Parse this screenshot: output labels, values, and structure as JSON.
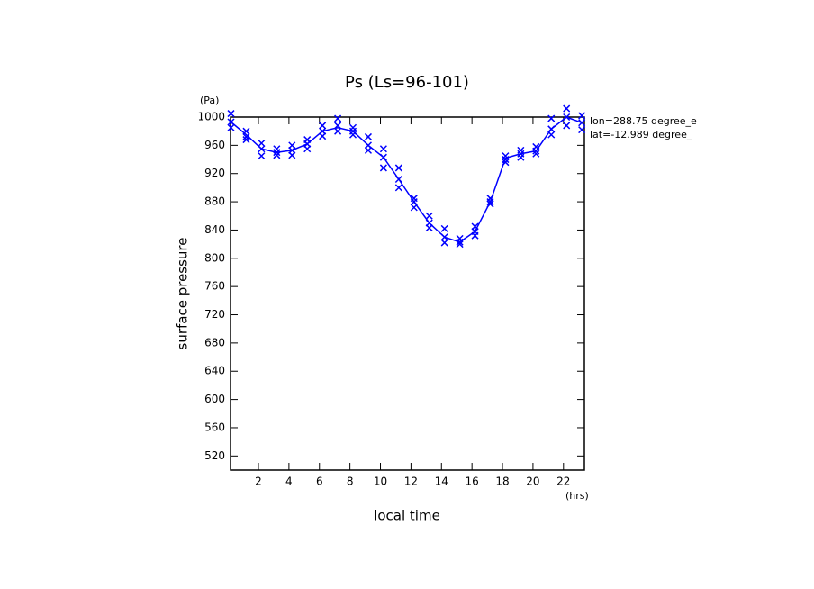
{
  "chart_data": {
    "type": "line",
    "title": "Ps (Ls=96-101)",
    "x_label": "local time",
    "y_label": "surface pressure",
    "y_unit": "(Pa)",
    "x_unit": "(hrs)",
    "annotations": [
      "lon=288.75 degree_e",
      "lat=-12.989 degree_"
    ],
    "xlim": [
      0.17,
      23.37
    ],
    "ylim": [
      500,
      1000
    ],
    "xticks": [
      2,
      4,
      6,
      8,
      10,
      12,
      14,
      16,
      18,
      20,
      22
    ],
    "yticks": [
      520,
      560,
      600,
      640,
      680,
      720,
      760,
      800,
      840,
      880,
      920,
      960,
      1000
    ],
    "series": [
      {
        "type": "line",
        "color": "#0000ff",
        "x": [
          0.2,
          1.2,
          2.2,
          3.2,
          4.2,
          5.2,
          6.2,
          7.2,
          8.2,
          9.2,
          10.2,
          11.2,
          12.2,
          13.2,
          14.2,
          15.2,
          16.2,
          17.2,
          18.2,
          19.2,
          20.2,
          21.2,
          22.2,
          23.2
        ],
        "values": [
          993,
          975,
          955,
          950,
          953,
          962,
          980,
          985,
          980,
          960,
          943,
          912,
          880,
          850,
          830,
          823,
          838,
          880,
          942,
          948,
          952,
          983,
          1000,
          992
        ]
      },
      {
        "type": "scatter",
        "marker": "x",
        "color": "#0000ff",
        "x": [
          0.2,
          0.2,
          0.2,
          1.2,
          1.2,
          1.2,
          2.2,
          2.2,
          2.2,
          3.2,
          3.2,
          3.2,
          4.2,
          4.2,
          4.2,
          5.2,
          5.2,
          5.2,
          6.2,
          6.2,
          6.2,
          7.2,
          7.2,
          7.2,
          8.2,
          8.2,
          8.2,
          9.2,
          9.2,
          9.2,
          10.2,
          10.2,
          10.2,
          11.2,
          11.2,
          11.2,
          12.2,
          12.2,
          12.2,
          13.2,
          13.2,
          13.2,
          14.2,
          14.2,
          14.2,
          15.2,
          15.2,
          15.2,
          16.2,
          16.2,
          16.2,
          17.2,
          17.2,
          17.2,
          18.2,
          18.2,
          18.2,
          19.2,
          19.2,
          19.2,
          20.2,
          20.2,
          20.2,
          21.2,
          21.2,
          21.2,
          22.2,
          22.2,
          22.2,
          23.2,
          23.2,
          23.2
        ],
        "values": [
          1005,
          993,
          985,
          980,
          972,
          968,
          963,
          955,
          945,
          955,
          950,
          946,
          960,
          953,
          946,
          968,
          962,
          955,
          988,
          980,
          973,
          998,
          988,
          980,
          985,
          980,
          975,
          972,
          960,
          953,
          955,
          943,
          928,
          928,
          912,
          900,
          885,
          880,
          872,
          860,
          850,
          843,
          842,
          830,
          822,
          828,
          823,
          820,
          845,
          838,
          832,
          885,
          880,
          877,
          945,
          940,
          936,
          953,
          948,
          943,
          958,
          952,
          948,
          998,
          983,
          975,
          1012,
          1000,
          988,
          1002,
          992,
          982
        ]
      }
    ]
  }
}
